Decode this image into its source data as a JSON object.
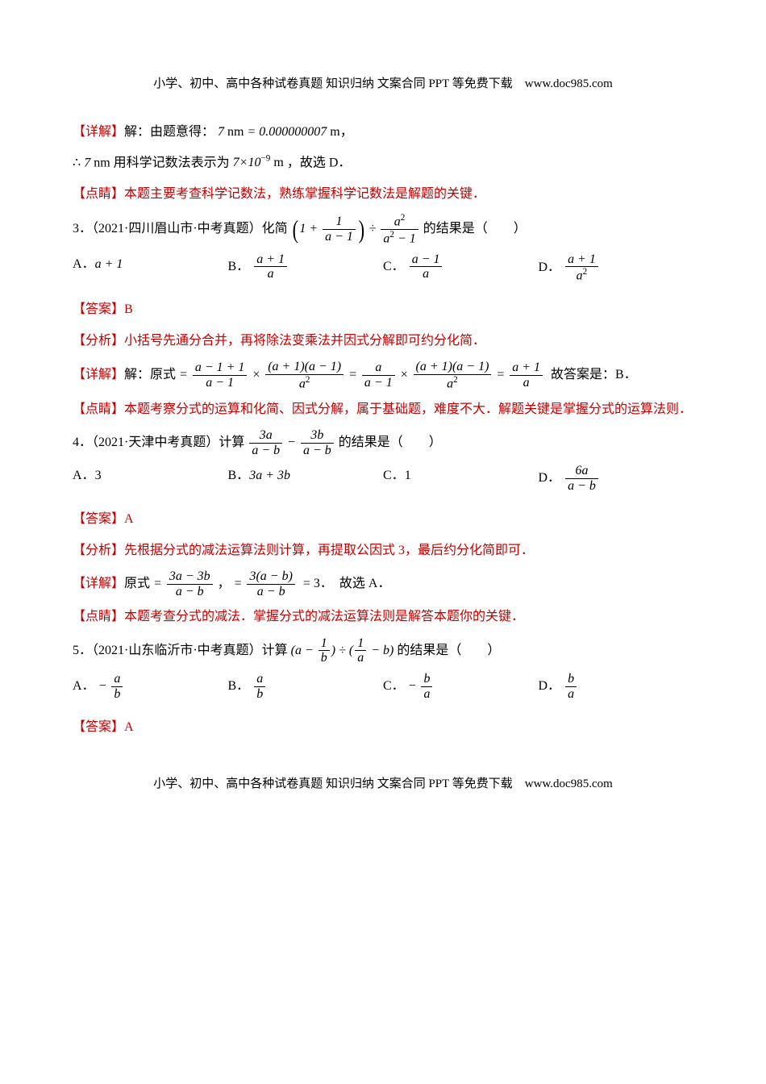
{
  "header": "小学、初中、高中各种试卷真题 知识归纳 文案合同 PPT 等免费下载　www.doc985.com",
  "footer": "小学、初中、高中各种试卷真题 知识归纳 文案合同 PPT 等免费下载　www.doc985.com",
  "q2": {
    "detail_label": "【详解】",
    "detail_text1": "解：由题意得：",
    "eq1": "7 nm = 0.000000007 m",
    "comma": "，",
    "line2_pre": "∴ ",
    "line2_7nm": "7 nm",
    "line2_mid": " 用科学记数法表示为 ",
    "line2_expr": "7×10⁻⁹ m",
    "line2_tail": "，故选 D．",
    "dianjing_label": "【点睛】",
    "dianjing_text": "本题主要考查科学记数法，熟练掌握科学记数法是解题的关键．"
  },
  "q3": {
    "stem_pre": "3．（2021·四川眉山市·中考真题）化简",
    "stem_tail": "的结果是（　　）",
    "opt_a_label": "A．",
    "opt_a": "a + 1",
    "opt_b_label": "B．",
    "opt_c_label": "C．",
    "opt_d_label": "D．",
    "frac_b_num": "a + 1",
    "frac_b_den": "a",
    "frac_c_num": "a − 1",
    "frac_c_den": "a",
    "frac_d_num": "a + 1",
    "frac_d_den": "a²",
    "ans_label": "【答案】",
    "ans": "B",
    "fenxi_label": "【分析】",
    "fenxi_text": "小括号先通分合并，再将除法变乘法并因式分解即可约分化简．",
    "detail_label": "【详解】",
    "detail_pre": "解：原式",
    "step1_num": "a − 1 + 1",
    "step1_den": "a − 1",
    "step2_num": "(a + 1)(a − 1)",
    "step2_den": "a²",
    "step3_num": "a",
    "step3_den": "a − 1",
    "step4_num": "(a + 1)(a − 1)",
    "step4_den": "a²",
    "step5_num": "a + 1",
    "step5_den": "a",
    "detail_tail": "故答案是：B．",
    "dianjing_label": "【点睛】",
    "dianjing_text": "本题考察分式的运算和化简、因式分解，属于基础题，难度不大．解题关键是掌握分式的运算法则．"
  },
  "q4": {
    "stem_pre": "4．（2021·天津中考真题）计算",
    "frac1_num": "3a",
    "frac1_den": "a − b",
    "minus": " − ",
    "frac2_num": "3b",
    "frac2_den": "a − b",
    "stem_tail": " 的结果是（　　）",
    "opt_a_label": "A．",
    "opt_a": "3",
    "opt_b_label": "B．",
    "opt_b": "3a + 3b",
    "opt_c_label": "C．",
    "opt_c": "1",
    "opt_d_label": "D．",
    "frac_d_num": "6a",
    "frac_d_den": "a − b",
    "ans_label": "【答案】",
    "ans": "A",
    "fenxi_label": "【分析】",
    "fenxi_text": "先根据分式的减法运算法则计算，再提取公因式 3，最后约分化简即可．",
    "detail_label": "【详解】",
    "detail_pre": "原式",
    "s1_num": "3a − 3b",
    "s1_den": "a − b",
    "s2_num": "3(a − b)",
    "s2_den": "a − b",
    "eq3": "= 3．",
    "detail_tail": "故选 A．",
    "dianjing_label": "【点睛】",
    "dianjing_text": "本题考查分式的减法．掌握分式的减法运算法则是解答本题你的关键．"
  },
  "q5": {
    "stem_pre": "5．（2021·山东临沂市·中考真题）计算",
    "p1_a": "a",
    "p1_fnum": "1",
    "p1_fden": "b",
    "div": " ÷ ",
    "p2_fnum": "1",
    "p2_fden": "a",
    "p2_b": "b",
    "stem_tail": " 的结果是（　　）",
    "opt_a_label": "A．",
    "fa_num": "a",
    "fa_den": "b",
    "neg": "− ",
    "opt_b_label": "B．",
    "fb_num": "a",
    "fb_den": "b",
    "opt_c_label": "C．",
    "fc_num": "b",
    "fc_den": "a",
    "opt_d_label": "D．",
    "fd_num": "b",
    "fd_den": "a",
    "ans_label": "【答案】",
    "ans": "A"
  }
}
